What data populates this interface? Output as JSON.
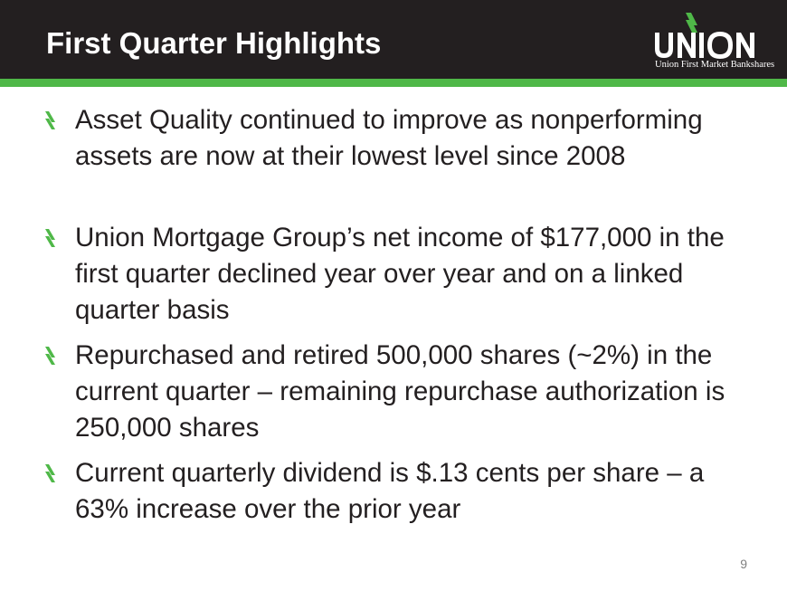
{
  "slide": {
    "title": "First Quarter Highlights",
    "page_number": "9"
  },
  "logo": {
    "wordmark": "UNION",
    "subtitle": "Union First Market Bankshares"
  },
  "colors": {
    "header_bg": "#231f20",
    "accent_green": "#4fb848",
    "body_text": "#231f20"
  },
  "bullets": [
    {
      "text": "Asset Quality continued to improve as nonperforming assets are now at their lowest level since 2008"
    },
    {
      "text": "Union Mortgage Group’s net income of $177,000 in the first quarter declined year over year and on a linked quarter basis"
    },
    {
      "text": "Repurchased and retired 500,000 shares (~2%) in the current quarter – remaining repurchase authorization is 250,000 shares"
    },
    {
      "text": "Current quarterly dividend is $.13 cents per share – a 63% increase over the prior year"
    }
  ]
}
